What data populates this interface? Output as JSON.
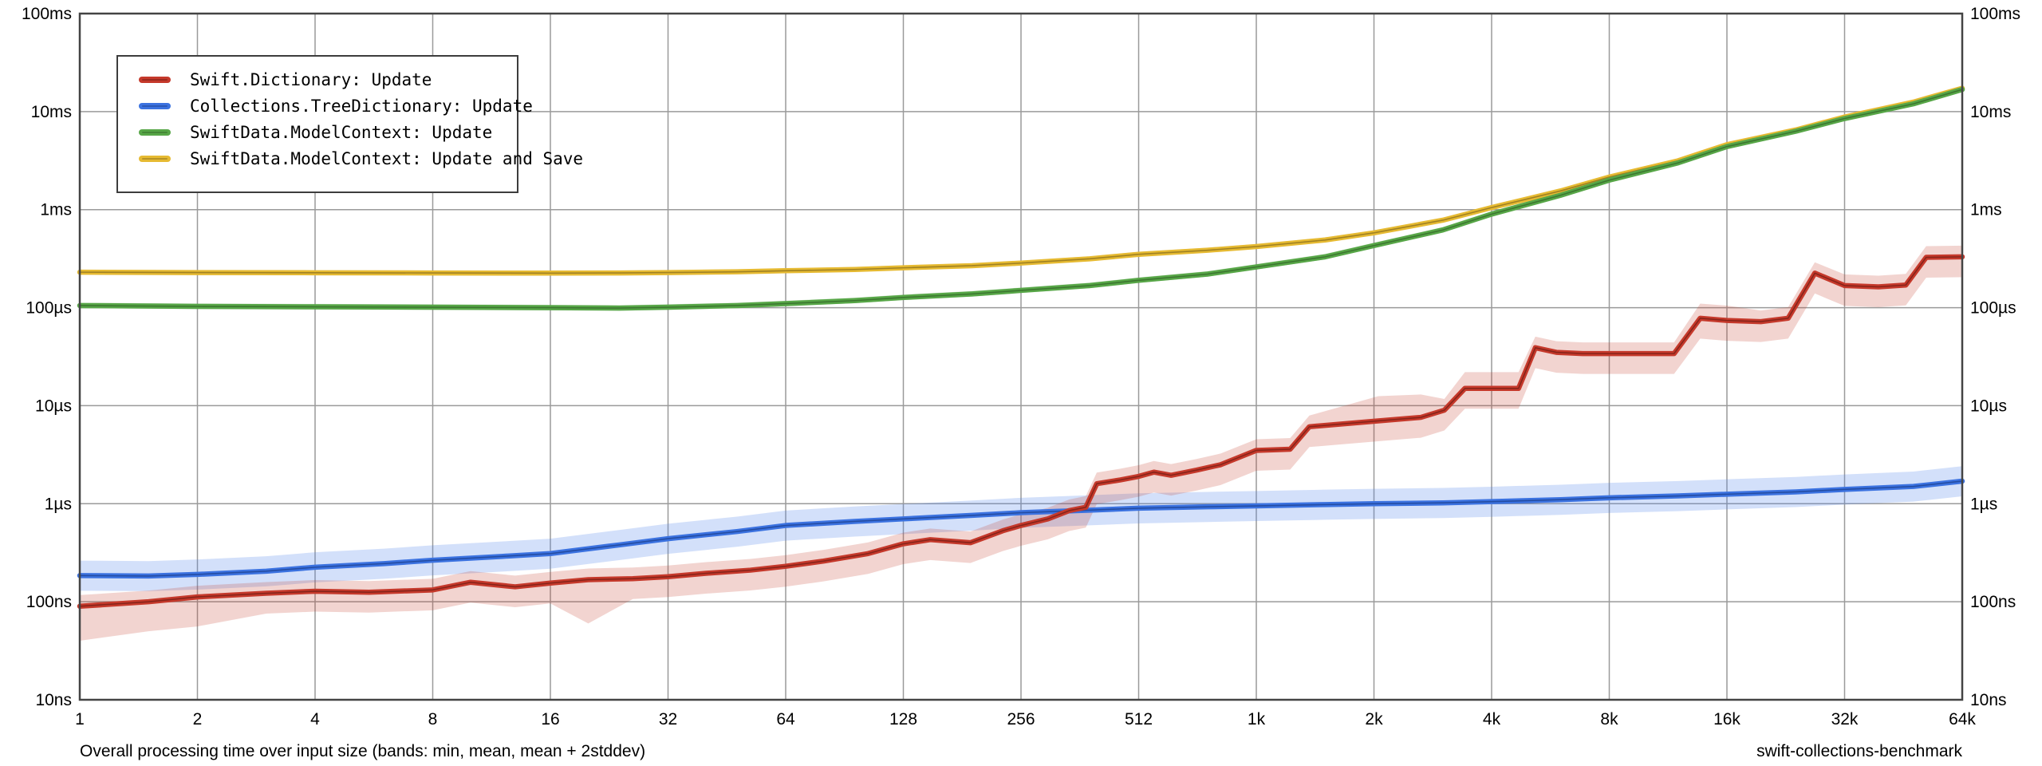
{
  "captions": {
    "bottom_left": "Overall processing time over input size (bands: min, mean, mean + 2stddev)",
    "bottom_right": "swift-collections-benchmark"
  },
  "chart_data": {
    "type": "line",
    "title": "",
    "bands_note": "min, mean, mean + 2stddev",
    "grid": true,
    "legend_position": "top-left",
    "x_axis": {
      "scale": "log2",
      "min": 1,
      "max": 65536,
      "tick_values": [
        1,
        2,
        4,
        8,
        16,
        32,
        64,
        128,
        256,
        512,
        1024,
        2048,
        4096,
        8192,
        16384,
        32768,
        65536
      ],
      "tick_labels": [
        "1",
        "2",
        "4",
        "8",
        "16",
        "32",
        "64",
        "128",
        "256",
        "512",
        "1k",
        "2k",
        "4k",
        "8k",
        "16k",
        "32k",
        "64k"
      ]
    },
    "y_axis": {
      "scale": "log10",
      "min_seconds": 1e-08,
      "max_seconds": 0.1,
      "tick_values": [
        0.1,
        0.01,
        0.001,
        0.0001,
        1e-05,
        1e-06,
        1e-07,
        1e-08
      ],
      "tick_labels": [
        "100ms",
        "10ms",
        "1ms",
        "100µs",
        "10µs",
        "1µs",
        "100ns",
        "10ns"
      ],
      "mirrored_right": true
    },
    "colors": {
      "grid": "#9a9a9a",
      "border": "#444444",
      "background": "#ffffff"
    },
    "series": [
      {
        "name": "SwiftData.ModelContext: Update and Save",
        "legend_index": 3,
        "color": "#e6ba32",
        "core_color": "#8f731e",
        "band_color": "rgba(230,186,50,0.30)",
        "band_low_ratio": 0.95,
        "band_high_ratio": 1.06,
        "x": [
          1,
          2,
          4,
          8,
          16,
          24,
          32,
          48,
          64,
          96,
          128,
          192,
          256,
          384,
          512,
          768,
          1024,
          1536,
          2048,
          3072,
          4096,
          6144,
          8192,
          12288,
          16384,
          24576,
          32768,
          49152,
          65536
        ],
        "mean_seconds": [
          0.00023,
          0.000228,
          0.000227,
          0.000226,
          0.000225,
          0.000226,
          0.000228,
          0.000232,
          0.000238,
          0.000245,
          0.000255,
          0.000268,
          0.000285,
          0.000315,
          0.00035,
          0.000385,
          0.00042,
          0.00049,
          0.00058,
          0.00078,
          0.00105,
          0.00155,
          0.00215,
          0.00315,
          0.0046,
          0.0065,
          0.0088,
          0.0125,
          0.0173
        ]
      },
      {
        "name": "SwiftData.ModelContext: Update",
        "legend_index": 2,
        "color": "#57a647",
        "core_color": "#366b2a",
        "band_color": "rgba(87,166,71,0.30)",
        "band_low_ratio": 0.94,
        "band_high_ratio": 1.07,
        "x": [
          1,
          2,
          4,
          8,
          16,
          24,
          32,
          48,
          64,
          96,
          128,
          192,
          256,
          384,
          512,
          768,
          1024,
          1536,
          2048,
          3072,
          4096,
          6144,
          8192,
          12288,
          16384,
          24576,
          32768,
          49152,
          65536
        ],
        "mean_seconds": [
          0.000105,
          0.000103,
          0.000102,
          0.000101,
          0.0001,
          9.9e-05,
          0.000101,
          0.000105,
          0.00011,
          0.000118,
          0.000127,
          0.000138,
          0.00015,
          0.000168,
          0.00019,
          0.00022,
          0.00026,
          0.00033,
          0.00043,
          0.00062,
          0.0009,
          0.0014,
          0.002,
          0.003,
          0.0044,
          0.0063,
          0.0085,
          0.012,
          0.0168
        ]
      },
      {
        "name": "Collections.TreeDictionary: Update",
        "legend_index": 1,
        "color": "#3b72e0",
        "core_color": "#1f4394",
        "band_color": "rgba(80,130,235,0.25)",
        "band_low_ratio": 0.7,
        "band_high_ratio": 1.42,
        "x": [
          1,
          1.5,
          2,
          3,
          4,
          6,
          8,
          12,
          16,
          24,
          32,
          48,
          64,
          96,
          128,
          192,
          256,
          384,
          512,
          768,
          1024,
          1536,
          2048,
          3072,
          4096,
          6144,
          8192,
          12288,
          16384,
          24576,
          32768,
          49152,
          65536
        ],
        "mean_seconds": [
          1.85e-07,
          1.83e-07,
          1.9e-07,
          2.05e-07,
          2.25e-07,
          2.45e-07,
          2.65e-07,
          2.9e-07,
          3.1e-07,
          3.8e-07,
          4.4e-07,
          5.2e-07,
          6e-07,
          6.6e-07,
          7e-07,
          7.6e-07,
          8.1e-07,
          8.6e-07,
          9e-07,
          9.3e-07,
          9.5e-07,
          9.8e-07,
          1e-06,
          1.02e-06,
          1.05e-06,
          1.1e-06,
          1.15e-06,
          1.2e-06,
          1.25e-06,
          1.32e-06,
          1.4e-06,
          1.5e-06,
          1.7e-06
        ]
      },
      {
        "name": "Swift.Dictionary: Update",
        "legend_index": 0,
        "color": "#c5392b",
        "core_color": "#771f16",
        "band_color": "rgba(197,57,43,0.22)",
        "band_low_ratio": 0.62,
        "band_high_ratio": 1.3,
        "min_override_seconds": {
          "0": 4e-08,
          "1": 5e-08,
          "2": 5.6e-08,
          "10": 6e-08
        },
        "max_override_seconds": {
          "36": 1.25e-05,
          "37": 1.3e-05,
          "39": 2.2e-05,
          "40": 2.2e-05,
          "46": 0.00011,
          "47": 0.000105,
          "50": 0.00029
        },
        "x": [
          1,
          1.5,
          2,
          3,
          4,
          5.5,
          8,
          10,
          13,
          16,
          20,
          26,
          32,
          40,
          52,
          64,
          80,
          104,
          128,
          150,
          190,
          230,
          256,
          300,
          340,
          375,
          400,
          460,
          512,
          560,
          620,
          720,
          830,
          1024,
          1250,
          1400,
          2100,
          2700,
          3100,
          3500,
          4800,
          5300,
          6000,
          7000,
          9000,
          12000,
          14000,
          16384,
          20000,
          23500,
          27500,
          32768,
          40000,
          47000,
          53000,
          65536
        ],
        "mean_seconds": [
          9e-08,
          1e-07,
          1.12e-07,
          1.22e-07,
          1.28e-07,
          1.25e-07,
          1.32e-07,
          1.58e-07,
          1.42e-07,
          1.55e-07,
          1.68e-07,
          1.72e-07,
          1.8e-07,
          1.95e-07,
          2.1e-07,
          2.3e-07,
          2.6e-07,
          3.1e-07,
          3.9e-07,
          4.3e-07,
          4e-07,
          5.3e-07,
          6e-07,
          7e-07,
          8.5e-07,
          9.2e-07,
          1.6e-06,
          1.75e-06,
          1.9e-06,
          2.1e-06,
          1.95e-06,
          2.2e-06,
          2.5e-06,
          3.5e-06,
          3.6e-06,
          6.1e-06,
          7e-06,
          7.6e-06,
          9e-06,
          1.5e-05,
          1.5e-05,
          3.9e-05,
          3.5e-05,
          3.4e-05,
          3.4e-05,
          3.4e-05,
          7.8e-05,
          7.4e-05,
          7.2e-05,
          7.8e-05,
          0.000225,
          0.000168,
          0.000163,
          0.00017,
          0.000326,
          0.00033
        ]
      }
    ]
  }
}
